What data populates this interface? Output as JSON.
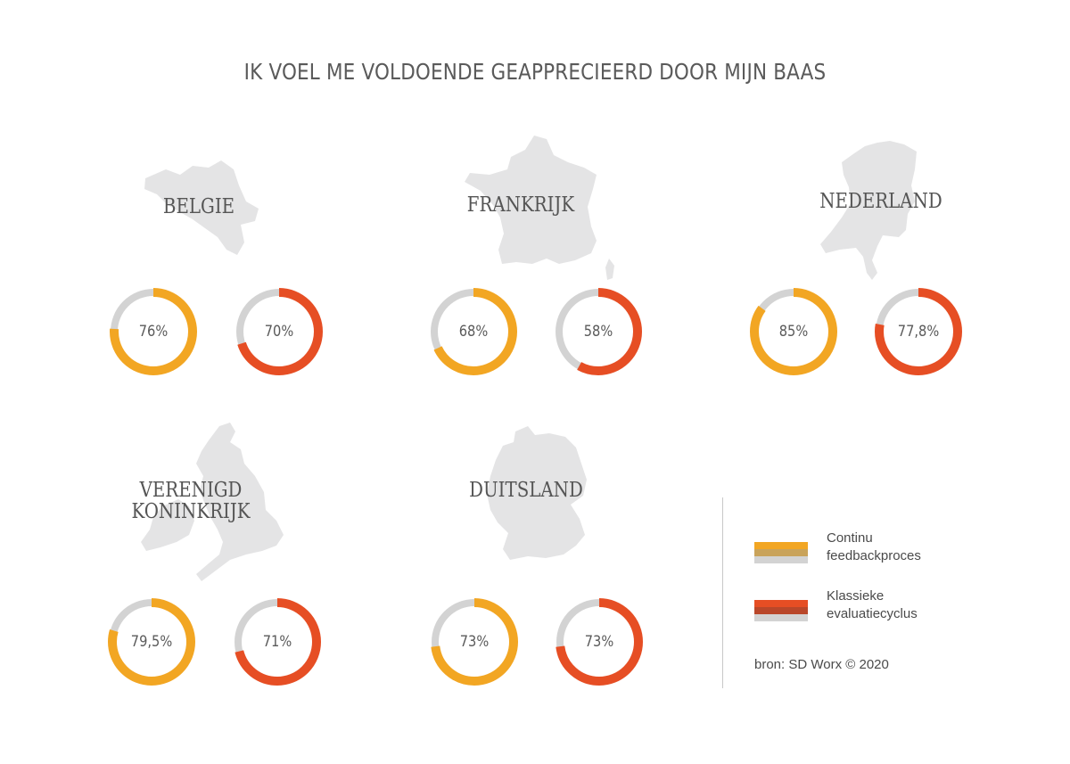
{
  "title": "IK VOEL ME VOLDOENDE GEAPPRECIEERD DOOR MIJN BAAS",
  "colors": {
    "continu": "#F2A623",
    "continu_dark": "#C9A35A",
    "klassiek": "#E64E24",
    "klassiek_dark": "#B9472A",
    "track": "#D3D3D3",
    "map": "#E4E4E5"
  },
  "legend": {
    "continu": {
      "line1": "Continu",
      "line2": "feedbackproces"
    },
    "klassiek": {
      "line1": "Klassieke",
      "line2": "evaluatiecyclus"
    }
  },
  "source": "bron: SD Worx © 2020",
  "countries": {
    "belgie": {
      "line1": "BELGIE",
      "line2": "",
      "continu_label": "76%",
      "klassiek_label": "70%"
    },
    "frankrijk": {
      "line1": "FRANKRIJK",
      "line2": "",
      "continu_label": "68%",
      "klassiek_label": "58%"
    },
    "nederland": {
      "line1": "NEDERLAND",
      "line2": "",
      "continu_label": "85%",
      "klassiek_label": "77,8%"
    },
    "vk": {
      "line1": "VERENIGD",
      "line2": "KONINKRIJK",
      "continu_label": "79,5%",
      "klassiek_label": "71%"
    },
    "duitsland": {
      "line1": "DUITSLAND",
      "line2": "",
      "continu_label": "73%",
      "klassiek_label": "73%"
    }
  },
  "chart_data": {
    "type": "pie",
    "title": "IK VOEL ME VOLDOENDE GEAPPRECIEERD DOOR MIJN BAAS",
    "categories": [
      "BELGIE",
      "FRANKRIJK",
      "NEDERLAND",
      "VERENIGD KONINKRIJK",
      "DUITSLAND"
    ],
    "series": [
      {
        "name": "Continu feedbackproces",
        "values": [
          76,
          68,
          85,
          79.5,
          73
        ]
      },
      {
        "name": "Klassieke evaluatiecyclus",
        "values": [
          70,
          58,
          77.8,
          71,
          73
        ]
      }
    ],
    "unit": "%",
    "legend": "right"
  }
}
